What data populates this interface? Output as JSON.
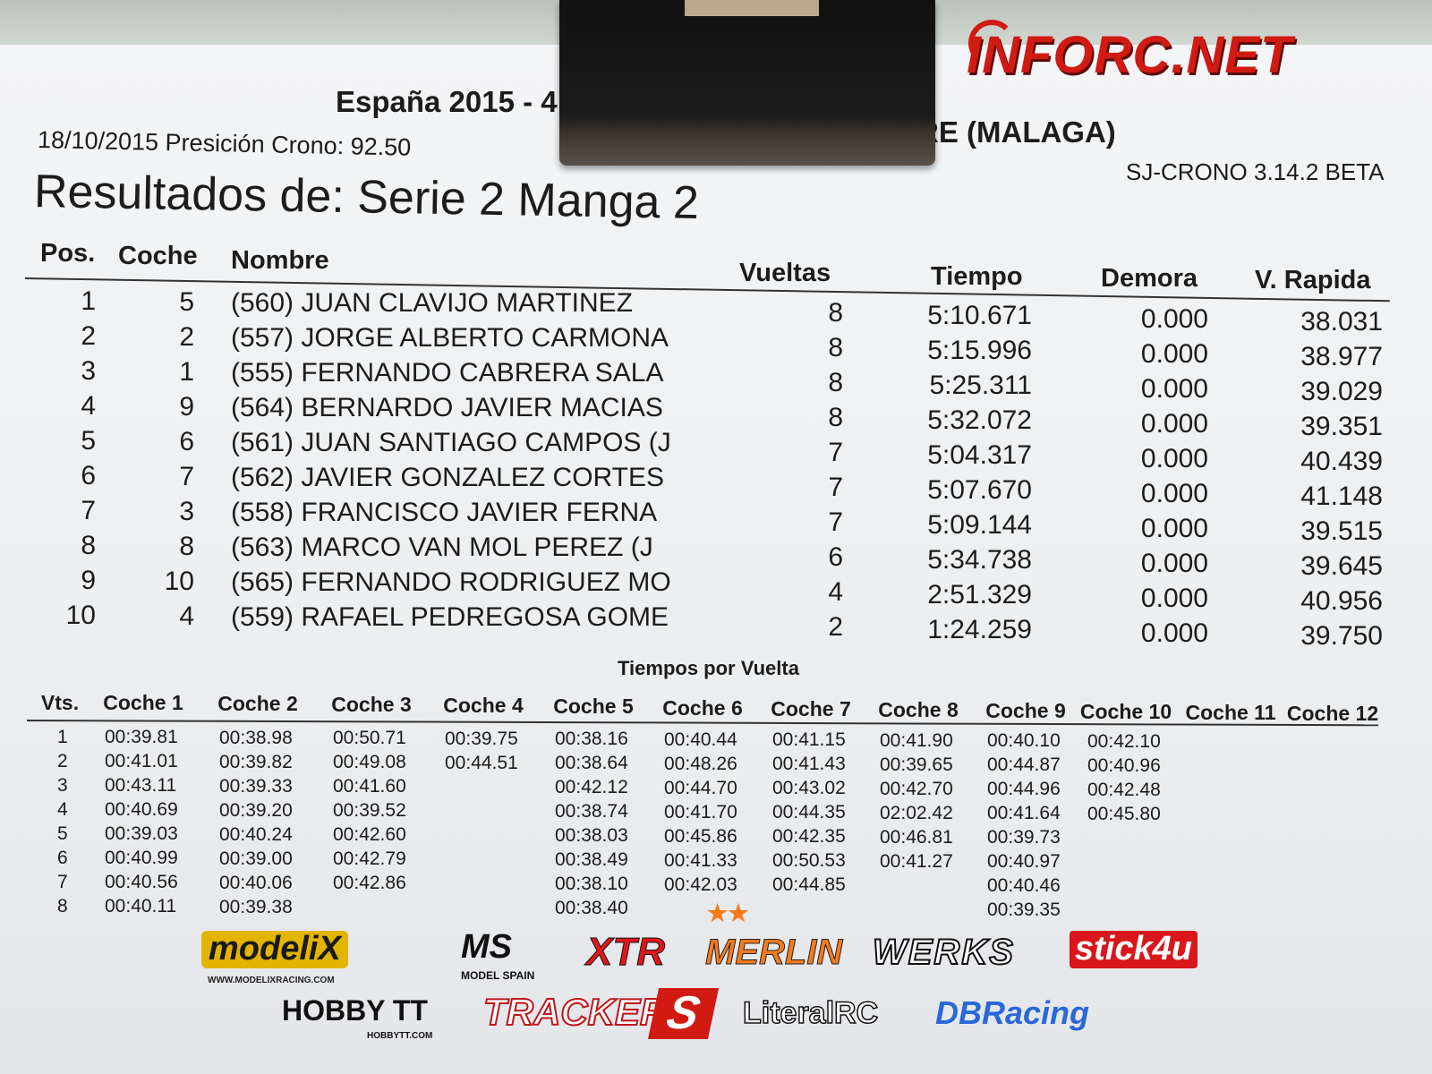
{
  "brand": {
    "watermark": "INFORC.NET",
    "color": "#d01a12"
  },
  "header": {
    "event_visible_left": "España 2015 - 4",
    "event_visible_right": "RE  (MALAGA)",
    "date_line": "18/10/2015 Presición Crono: 92.50",
    "software": "SJ-CRONO 3.14.2 BETA",
    "title": "Resultados de: Serie 2 Manga 2"
  },
  "results": {
    "columns": {
      "pos": "Pos.",
      "coche": "Coche",
      "nombre": "Nombre",
      "vueltas": "Vueltas",
      "tiempo": "Tiempo",
      "demora": "Demora",
      "rapida": "V. Rapida"
    },
    "rows": [
      {
        "pos": "1",
        "coche": "5",
        "nombre": "(560) JUAN CLAVIJO MARTINEZ",
        "vueltas": "8",
        "tiempo": "5:10.671",
        "demora": "0.000",
        "rapida": "38.031"
      },
      {
        "pos": "2",
        "coche": "2",
        "nombre": "(557) JORGE ALBERTO CARMONA",
        "vueltas": "8",
        "tiempo": "5:15.996",
        "demora": "0.000",
        "rapida": "38.977"
      },
      {
        "pos": "3",
        "coche": "1",
        "nombre": "(555) FERNANDO CABRERA SALA",
        "vueltas": "8",
        "tiempo": "5:25.311",
        "demora": "0.000",
        "rapida": "39.029"
      },
      {
        "pos": "4",
        "coche": "9",
        "nombre": "(564) BERNARDO JAVIER MACIAS",
        "vueltas": "8",
        "tiempo": "5:32.072",
        "demora": "0.000",
        "rapida": "39.351"
      },
      {
        "pos": "5",
        "coche": "6",
        "nombre": "(561) JUAN SANTIAGO CAMPOS (J",
        "vueltas": "7",
        "tiempo": "5:04.317",
        "demora": "0.000",
        "rapida": "40.439"
      },
      {
        "pos": "6",
        "coche": "7",
        "nombre": "(562) JAVIER GONZALEZ CORTES",
        "vueltas": "7",
        "tiempo": "5:07.670",
        "demora": "0.000",
        "rapida": "41.148"
      },
      {
        "pos": "7",
        "coche": "3",
        "nombre": "(558) FRANCISCO JAVIER FERNA",
        "vueltas": "7",
        "tiempo": "5:09.144",
        "demora": "0.000",
        "rapida": "39.515"
      },
      {
        "pos": "8",
        "coche": "8",
        "nombre": "(563) MARCO VAN MOL PEREZ (J",
        "vueltas": "6",
        "tiempo": "5:34.738",
        "demora": "0.000",
        "rapida": "39.645"
      },
      {
        "pos": "9",
        "coche": "10",
        "nombre": "(565) FERNANDO RODRIGUEZ MO",
        "vueltas": "4",
        "tiempo": "2:51.329",
        "demora": "0.000",
        "rapida": "40.956"
      },
      {
        "pos": "10",
        "coche": "4",
        "nombre": "(559) RAFAEL PEDREGOSA GOME",
        "vueltas": "2",
        "tiempo": "1:24.259",
        "demora": "0.000",
        "rapida": "39.750"
      }
    ]
  },
  "laps": {
    "title": "Tiempos por Vuelta",
    "vts_label": "Vts.",
    "columns": [
      "Coche 1",
      "Coche 2",
      "Coche 3",
      "Coche 4",
      "Coche 5",
      "Coche 6",
      "Coche 7",
      "Coche 8",
      "Coche 9",
      "Coche 10",
      "Coche 11",
      "Coche 12"
    ],
    "lap_numbers": [
      "1",
      "2",
      "3",
      "4",
      "5",
      "6",
      "7",
      "8"
    ],
    "times": [
      [
        "00:39.81",
        "00:41.01",
        "00:43.11",
        "00:40.69",
        "00:39.03",
        "00:40.99",
        "00:40.56",
        "00:40.11"
      ],
      [
        "00:38.98",
        "00:39.82",
        "00:39.33",
        "00:39.20",
        "00:40.24",
        "00:39.00",
        "00:40.06",
        "00:39.38"
      ],
      [
        "00:50.71",
        "00:49.08",
        "00:41.60",
        "00:39.52",
        "00:42.60",
        "00:42.79",
        "00:42.86"
      ],
      [
        "00:39.75",
        "00:44.51"
      ],
      [
        "00:38.16",
        "00:38.64",
        "00:42.12",
        "00:38.74",
        "00:38.03",
        "00:38.49",
        "00:38.10",
        "00:38.40"
      ],
      [
        "00:40.44",
        "00:48.26",
        "00:44.70",
        "00:41.70",
        "00:45.86",
        "00:41.33",
        "00:42.03"
      ],
      [
        "00:41.15",
        "00:41.43",
        "00:43.02",
        "00:44.35",
        "00:42.35",
        "00:50.53",
        "00:44.85"
      ],
      [
        "00:41.90",
        "00:39.65",
        "00:42.70",
        "02:02.42",
        "00:46.81",
        "00:41.27"
      ],
      [
        "00:40.10",
        "00:44.87",
        "00:44.96",
        "00:41.64",
        "00:39.73",
        "00:40.97",
        "00:40.46",
        "00:39.35"
      ],
      [
        "00:42.10",
        "00:40.96",
        "00:42.48",
        "00:45.80"
      ],
      [],
      []
    ]
  },
  "sponsors": {
    "row1": [
      "modeliX",
      "MS",
      "XTR",
      "MERLIN",
      "WERKS",
      "stick4u"
    ],
    "row2": [
      "HOBBY TT",
      "TRACKER",
      "S",
      "LiteralRC",
      "DBRacing"
    ],
    "modelix_url": "WWW.MODELIXRACING.COM",
    "ms_sub": "MODEL SPAIN",
    "hobbytt_url": "HOBBYTT.COM"
  }
}
